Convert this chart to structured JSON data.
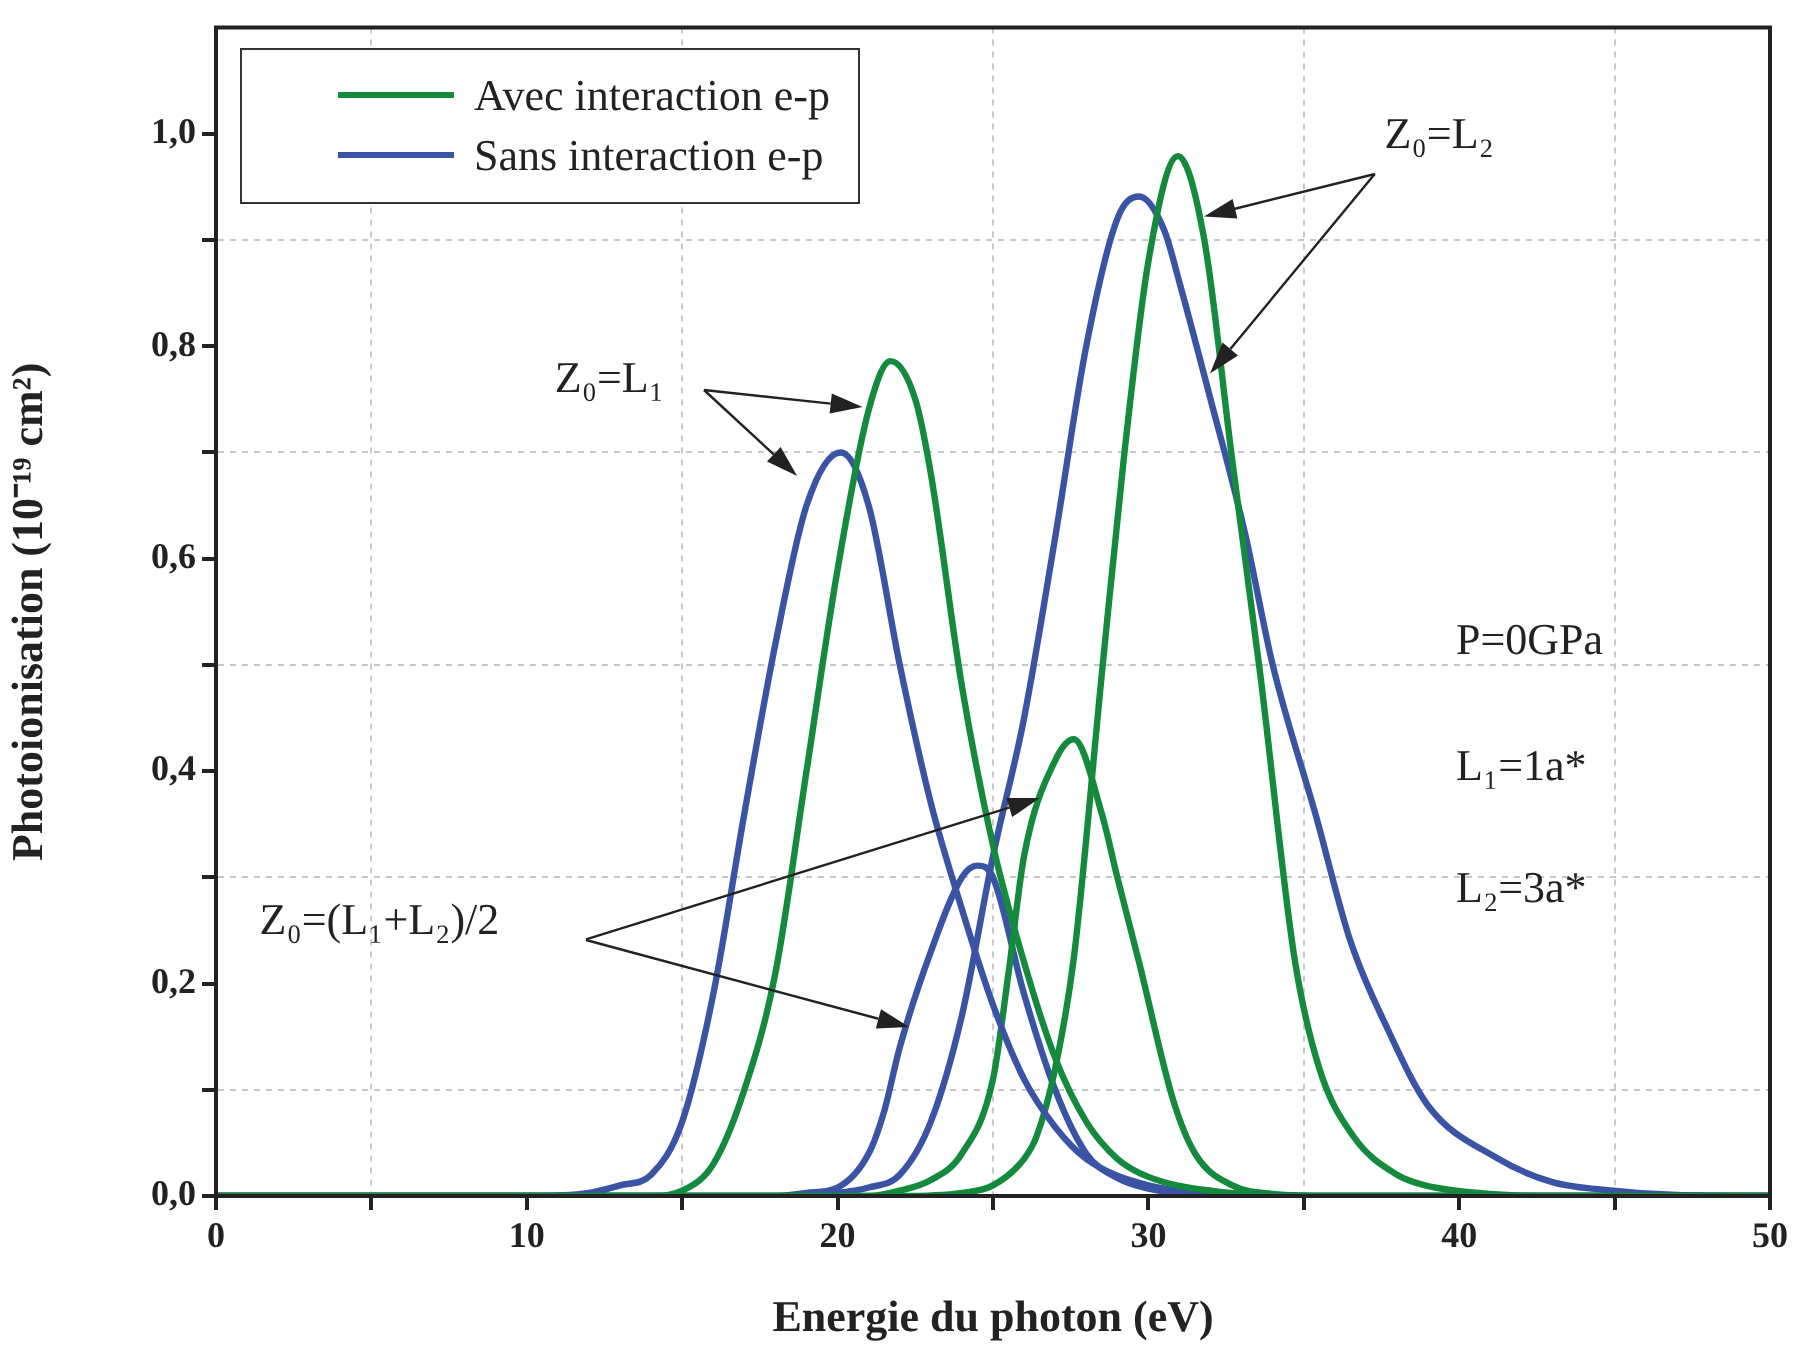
{
  "chart_data": {
    "type": "line",
    "xlabel": "Energie du photon (eV)",
    "ylabel": "Photoionisation (10⁻¹⁹ cm²)",
    "xlim": [
      0,
      50
    ],
    "xticks": [
      0,
      {
        "value": 5,
        "label": null
      },
      10,
      {
        "value": 15,
        "label": null
      },
      20,
      {
        "value": 25,
        "label": null
      },
      30,
      {
        "value": 35,
        "label": null
      },
      40,
      {
        "value": 45,
        "label": null
      },
      50
    ],
    "ylim": [
      0,
      1.1
    ],
    "yticks": [
      {
        "value": 0,
        "label": "0,0"
      },
      {
        "value": 0.1,
        "label": null
      },
      {
        "value": 0.2,
        "label": "0,2"
      },
      {
        "value": 0.3,
        "label": null
      },
      {
        "value": 0.4,
        "label": "0,4"
      },
      {
        "value": 0.5,
        "label": null
      },
      {
        "value": 0.6,
        "label": "0,6"
      },
      {
        "value": 0.7,
        "label": null
      },
      {
        "value": 0.8,
        "label": "0,8"
      },
      {
        "value": 0.9,
        "label": null
      },
      {
        "value": 1.0,
        "label": "1,0"
      }
    ],
    "grid": true,
    "legend": "top left",
    "marker": "none",
    "line_style": "solid",
    "series": [
      {
        "name": "Avec interaction e-p",
        "color": "#138a3c",
        "x": [
          0,
          14,
          15,
          16,
          17,
          18,
          19,
          20,
          21,
          21.7,
          22.5,
          23,
          24,
          25,
          26,
          27,
          28,
          29,
          30,
          32,
          35,
          50
        ],
        "values": [
          0,
          0,
          0.005,
          0.03,
          0.1,
          0.21,
          0.4,
          0.59,
          0.74,
          0.786,
          0.75,
          0.68,
          0.48,
          0.33,
          0.22,
          0.13,
          0.07,
          0.035,
          0.018,
          0.005,
          0,
          0
        ]
      },
      {
        "name": "Sans interaction e-p",
        "color": "#3a53a4",
        "x": [
          0,
          10,
          12,
          13,
          14,
          15,
          16,
          17,
          18,
          19,
          20.1,
          21,
          22,
          23,
          24,
          25,
          26,
          27,
          28,
          30,
          33,
          35,
          50
        ],
        "values": [
          0,
          0,
          0.003,
          0.01,
          0.02,
          0.07,
          0.19,
          0.36,
          0.52,
          0.65,
          0.7,
          0.65,
          0.5,
          0.37,
          0.27,
          0.18,
          0.11,
          0.065,
          0.035,
          0.01,
          0.002,
          0,
          0
        ]
      },
      {
        "color": "#138a3c",
        "x": [
          0,
          22,
          24,
          25,
          26,
          26.4,
          27,
          27.6,
          28.5,
          29.2,
          30,
          30.95,
          31.8,
          32.7,
          33.6,
          34.7,
          35.5,
          36.6,
          38,
          38.9,
          41,
          43,
          50
        ],
        "values": [
          0,
          0,
          0.003,
          0.01,
          0.035,
          0.056,
          0.12,
          0.224,
          0.491,
          0.692,
          0.88,
          0.979,
          0.9,
          0.692,
          0.491,
          0.224,
          0.12,
          0.056,
          0.02,
          0.01,
          0.002,
          0,
          0
        ]
      },
      {
        "color": "#3a53a4",
        "x": [
          0,
          18,
          20,
          21,
          22,
          23,
          24,
          25,
          26,
          27,
          28,
          29,
          29.7,
          30.5,
          31,
          32,
          33.1,
          34,
          35.4,
          36.5,
          37.7,
          39,
          41.2,
          43,
          44.6,
          47,
          50
        ],
        "values": [
          0,
          0,
          0.003,
          0.008,
          0.02,
          0.07,
          0.17,
          0.32,
          0.45,
          0.62,
          0.8,
          0.92,
          0.941,
          0.91,
          0.86,
          0.75,
          0.625,
          0.5,
          0.357,
          0.24,
          0.157,
          0.085,
          0.036,
          0.013,
          0.006,
          0.001,
          0
        ]
      },
      {
        "color": "#138a3c",
        "x": [
          0,
          21,
          22,
          23,
          24,
          25,
          25.5,
          26,
          27,
          27.6,
          28.5,
          29,
          29.7,
          30.8,
          31.5,
          32.7,
          34,
          36,
          50
        ],
        "values": [
          0,
          0,
          0.005,
          0.015,
          0.04,
          0.11,
          0.21,
          0.32,
          0.41,
          0.43,
          0.36,
          0.3,
          0.22,
          0.09,
          0.04,
          0.01,
          0.002,
          0,
          0
        ]
      },
      {
        "color": "#3a53a4",
        "x": [
          0,
          18,
          19,
          20,
          21,
          21.5,
          22,
          23,
          24,
          24.5,
          25,
          26,
          27,
          28,
          29,
          30,
          32,
          35,
          50
        ],
        "values": [
          0,
          0,
          0.003,
          0.008,
          0.04,
          0.08,
          0.14,
          0.23,
          0.3,
          0.311,
          0.3,
          0.19,
          0.1,
          0.04,
          0.017,
          0.007,
          0.001,
          0,
          0
        ]
      }
    ],
    "annotations": [
      "Z₀=L₁",
      "Z₀=L₂",
      "Z₀=(L₁+L₂)/2",
      "P=0GPa",
      "L₁=1a*",
      "L₂=3a*"
    ]
  }
}
